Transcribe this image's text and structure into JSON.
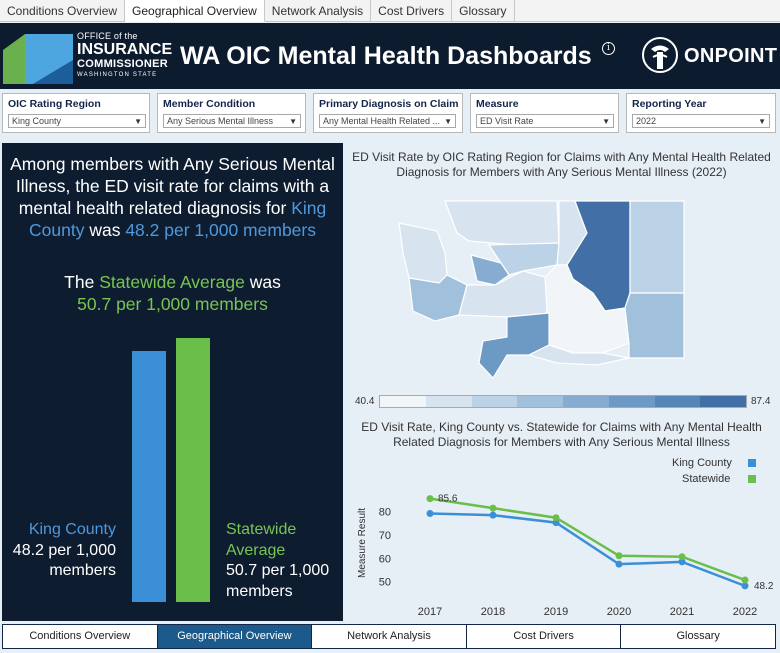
{
  "top_tabs": [
    "Conditions Overview",
    "Geographical Overview",
    "Network Analysis",
    "Cost Drivers",
    "Glossary"
  ],
  "top_tabs_active": 1,
  "header": {
    "logo": {
      "line1": "OFFICE of the",
      "line2": "INSURANCE",
      "line3": "COMMISSIONER",
      "line4": "WASHINGTON STATE"
    },
    "title": "WA OIC Mental Health Dashboards",
    "info_icon": "i",
    "brand": "ONPOINT"
  },
  "filters": [
    {
      "label": "OIC Rating Region",
      "value": "King County"
    },
    {
      "label": "Member Condition",
      "value": "Any Serious Mental Illness"
    },
    {
      "label": "Primary Diagnosis on Claim",
      "value": "Any Mental Health Related ..."
    },
    {
      "label": "Measure",
      "value": "ED Visit Rate"
    },
    {
      "label": "Reporting Year",
      "value": "2022"
    }
  ],
  "summary": {
    "part1": "Among members with Any Serious Mental Illness, the ED visit rate for claims with a mental health related diagnosis for",
    "region": "King County",
    "was": "was",
    "rate": "48.2 per 1,000 members",
    "statewide_prefix": "The",
    "statewide_name": "Statewide Average",
    "statewide_was": "was",
    "statewide_rate": "50.7 per 1,000 members"
  },
  "bars": {
    "kc_value": 48.2,
    "sw_value": 50.7,
    "kc_label_name": "King County",
    "kc_label_value": "48.2 per 1,000 members",
    "sw_label_name": "Statewide Average",
    "sw_label_value": "50.7 per 1,000 members"
  },
  "map": {
    "title": "ED Visit Rate by OIC Rating Region for Claims with Any Mental Health Related Diagnosis for Members with Any Serious Mental Illness (2022)",
    "legend_min": "40.4",
    "legend_max": "87.4"
  },
  "colors": {
    "king_county": "#3a8fd7",
    "statewide": "#6abf4b",
    "scale": [
      "#f2f5f8",
      "#d7e3ef",
      "#bcd2e6",
      "#a1c0dc",
      "#86add1",
      "#6d99c5",
      "#5685b7",
      "#4270a6"
    ]
  },
  "chart_data": {
    "type": "line",
    "title": "ED Visit Rate, King County vs. Statewide for Claims with Any Mental Health Related Diagnosis for Members with Any Serious Mental Illness",
    "xlabel": "",
    "ylabel": "Measure Result",
    "x": [
      "2017",
      "2018",
      "2019",
      "2020",
      "2021",
      "2022"
    ],
    "yticks": [
      "50",
      "60",
      "70",
      "80"
    ],
    "ylim": [
      46,
      88
    ],
    "series": [
      {
        "name": "King County",
        "values": [
          79.2,
          78.5,
          75.3,
          57.5,
          58.5,
          48.2
        ]
      },
      {
        "name": "Statewide",
        "values": [
          85.6,
          81.5,
          77.4,
          61.1,
          60.7,
          50.7
        ]
      }
    ],
    "data_labels": {
      "first": "85.6",
      "last": "48.2"
    }
  },
  "bottom_tabs": [
    "Conditions Overview",
    "Geographical Overview",
    "Network Analysis",
    "Cost Drivers",
    "Glossary"
  ],
  "bottom_tabs_active": 1
}
